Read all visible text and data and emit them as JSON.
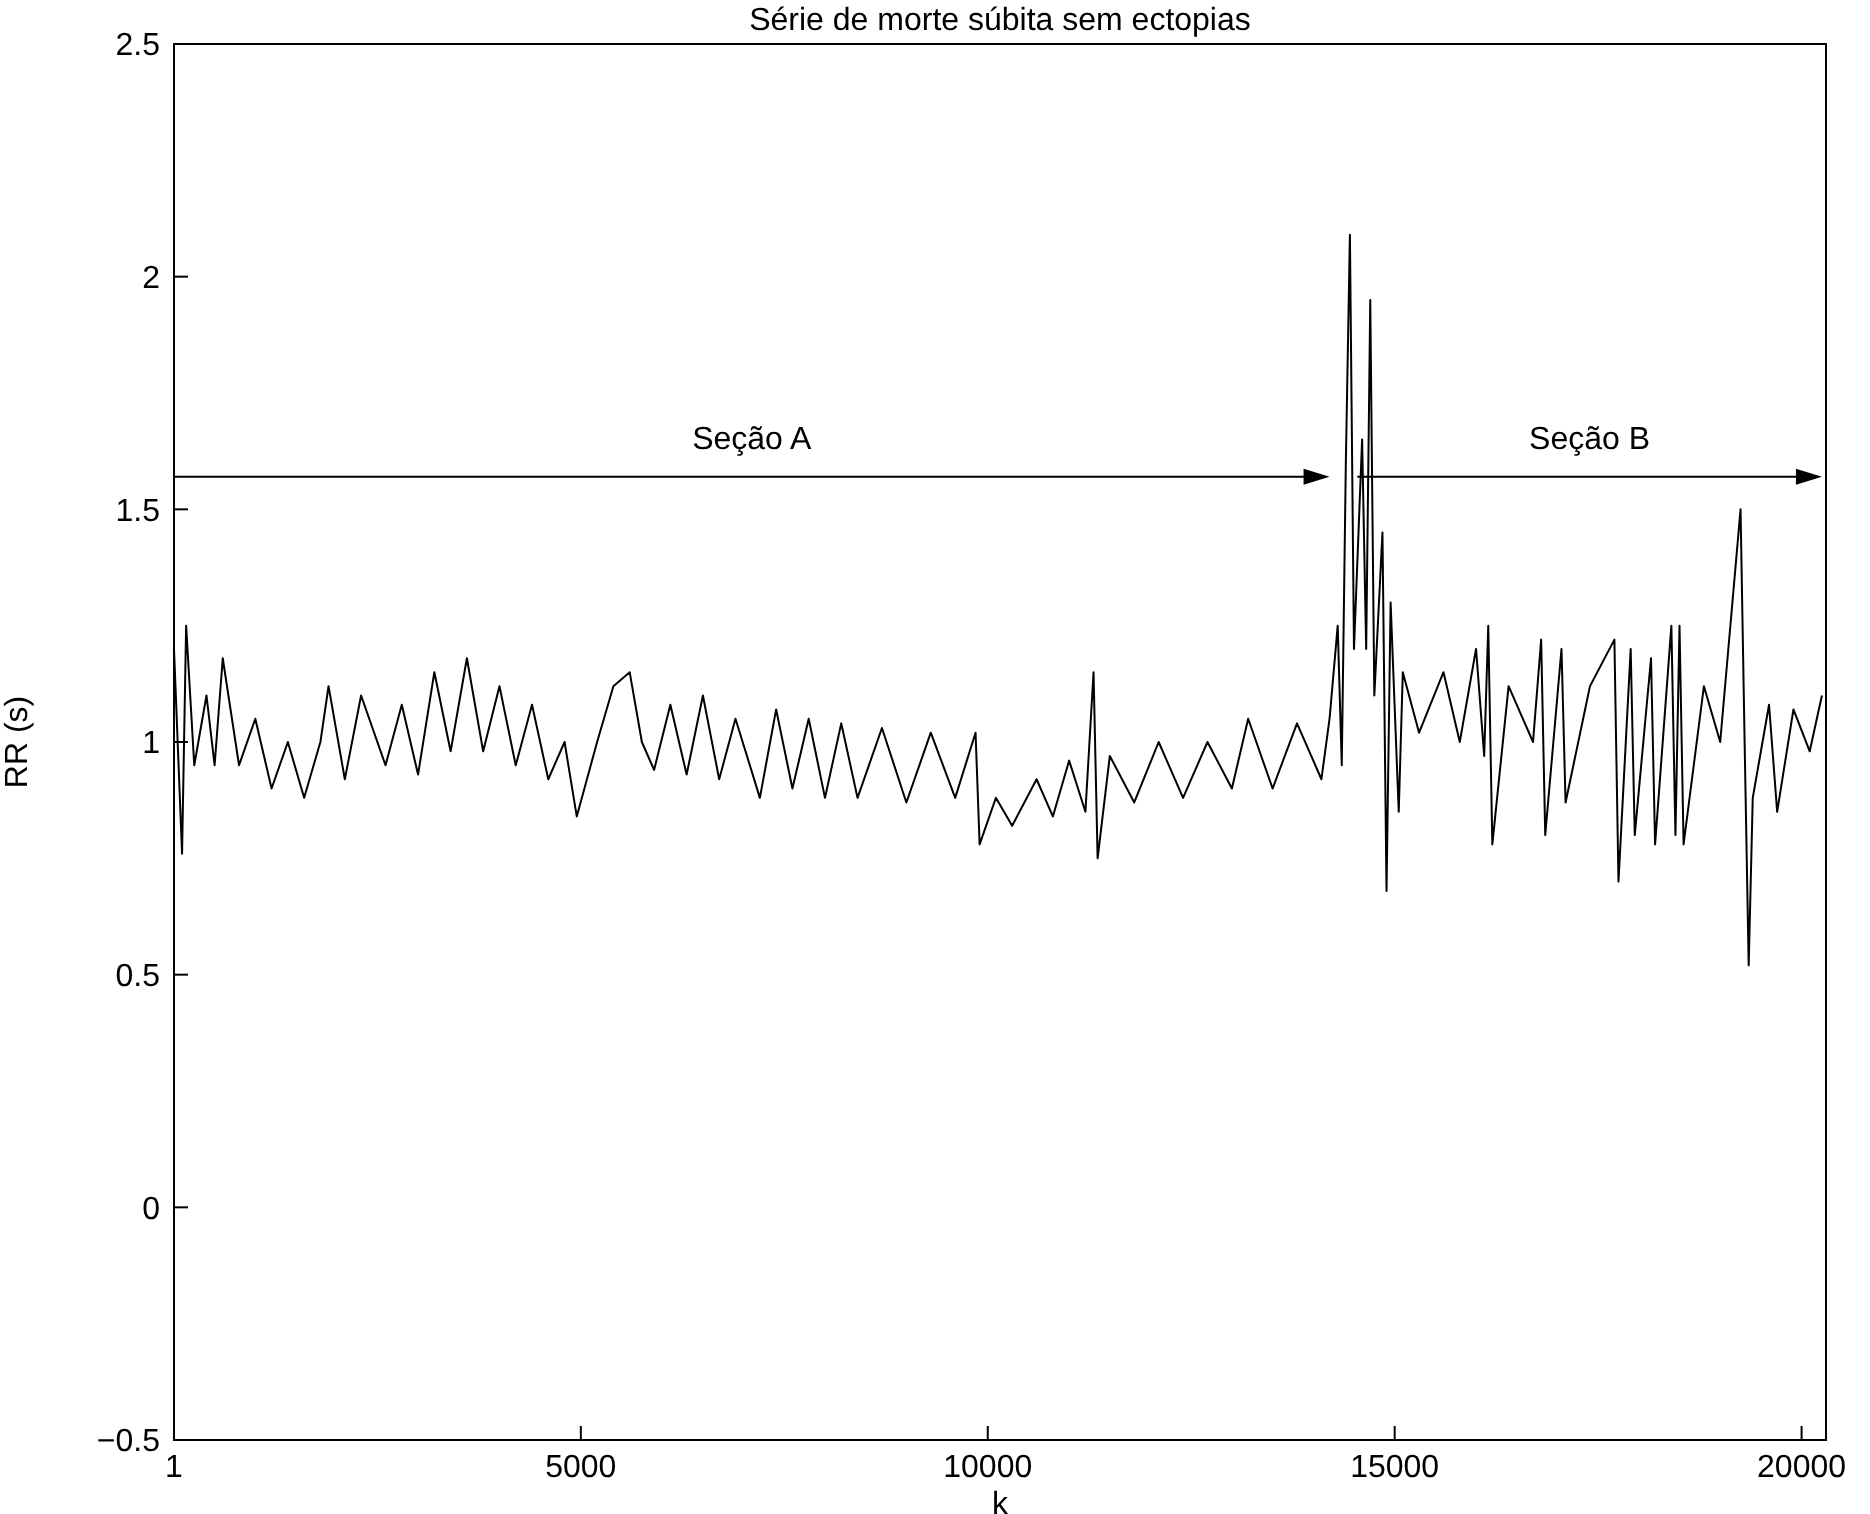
{
  "chart_data": {
    "type": "line",
    "title": "Série de morte súbita sem ectopias",
    "xlabel": "k",
    "ylabel": "RR (s)",
    "xlim": [
      1,
      20300
    ],
    "xticks": [
      1,
      5000,
      10000,
      15000,
      20000
    ],
    "ylim": [
      -0.5,
      2.5
    ],
    "yticks": [
      -0.5,
      0,
      0.5,
      1,
      1.5,
      2,
      2.5
    ],
    "grid": false,
    "legend": false,
    "marker": "none",
    "line_style": "solid",
    "annotations": [
      "Seção A",
      "Seção B"
    ],
    "series": [
      {
        "color": "#000000",
        "x": [
          1,
          100,
          150,
          250,
          400,
          500,
          600,
          800,
          1000,
          1200,
          1400,
          1600,
          1800,
          1900,
          2100,
          2300,
          2600,
          2800,
          3000,
          3200,
          3400,
          3600,
          3800,
          4000,
          4200,
          4400,
          4600,
          4800,
          4950,
          5200,
          5400,
          5600,
          5750,
          5900,
          6100,
          6300,
          6500,
          6700,
          6900,
          7200,
          7400,
          7600,
          7800,
          8000,
          8200,
          8400,
          8700,
          9000,
          9300,
          9600,
          9850,
          9900,
          10100,
          10300,
          10600,
          10800,
          11000,
          11200,
          11300,
          11350,
          11500,
          11800,
          12100,
          12400,
          12700,
          13000,
          13200,
          13500,
          13800,
          14100,
          14200,
          14300,
          14350,
          14400,
          14450,
          14500,
          14600,
          14650,
          14700,
          14750,
          14850,
          14900,
          14950,
          15050,
          15100,
          15300,
          15600,
          15800,
          16000,
          16100,
          16150,
          16200,
          16400,
          16700,
          16800,
          16850,
          17050,
          17100,
          17400,
          17700,
          17750,
          17900,
          17950,
          18150,
          18200,
          18400,
          18450,
          18500,
          18550,
          18800,
          19000,
          19250,
          19300,
          19350,
          19400,
          19600,
          19700,
          19900,
          20100,
          20250
        ],
        "values": [
          1.2,
          0.76,
          1.25,
          0.95,
          1.1,
          0.95,
          1.18,
          0.95,
          1.05,
          0.9,
          1.0,
          0.88,
          1.0,
          1.12,
          0.92,
          1.1,
          0.95,
          1.08,
          0.93,
          1.15,
          0.98,
          1.18,
          0.98,
          1.12,
          0.95,
          1.08,
          0.92,
          1.0,
          0.84,
          1.0,
          1.12,
          1.15,
          1.0,
          0.94,
          1.08,
          0.93,
          1.1,
          0.92,
          1.05,
          0.88,
          1.07,
          0.9,
          1.05,
          0.88,
          1.04,
          0.88,
          1.03,
          0.87,
          1.02,
          0.88,
          1.02,
          0.78,
          0.88,
          0.82,
          0.92,
          0.84,
          0.96,
          0.85,
          1.15,
          0.75,
          0.97,
          0.87,
          1.0,
          0.88,
          1.0,
          0.9,
          1.05,
          0.9,
          1.04,
          0.92,
          1.05,
          1.25,
          0.95,
          1.6,
          2.09,
          1.2,
          1.65,
          1.2,
          1.95,
          1.1,
          1.45,
          0.68,
          1.3,
          0.85,
          1.15,
          1.02,
          1.15,
          1.0,
          1.2,
          0.97,
          1.25,
          0.78,
          1.12,
          1.0,
          1.22,
          0.8,
          1.2,
          0.87,
          1.12,
          1.22,
          0.7,
          1.2,
          0.8,
          1.18,
          0.78,
          1.25,
          0.8,
          1.25,
          0.78,
          1.12,
          1.0,
          1.5,
          1.0,
          0.52,
          0.88,
          1.08,
          0.85,
          1.07,
          0.98,
          1.1
        ]
      }
    ]
  }
}
